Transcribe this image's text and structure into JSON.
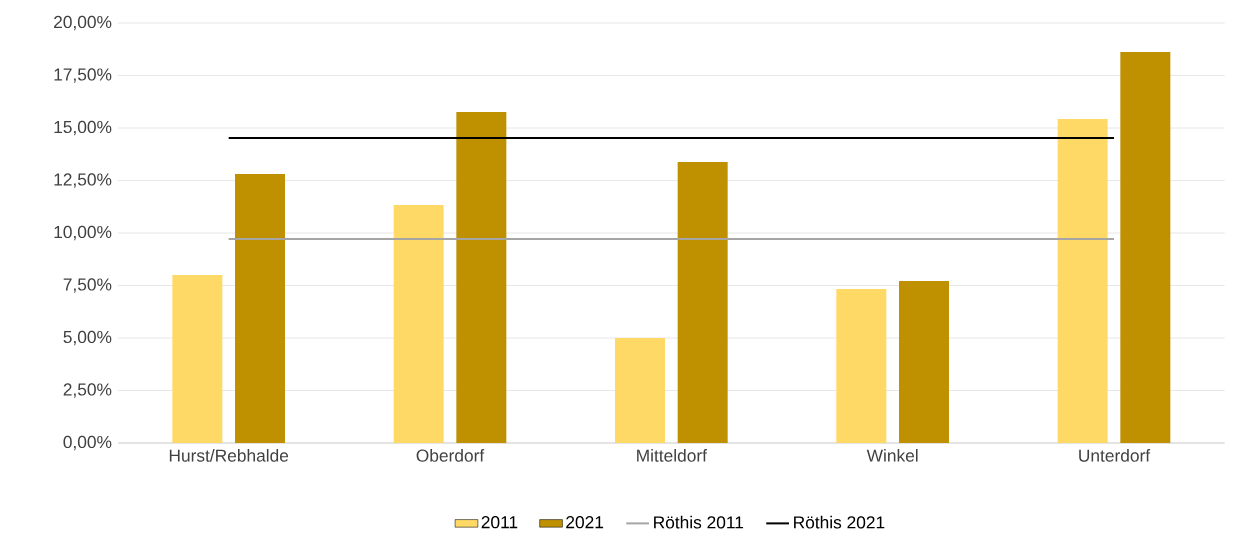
{
  "chart_data": {
    "type": "bar",
    "categories": [
      "Hurst/Rebhalde",
      "Oberdorf",
      "Mitteldorf",
      "Winkel",
      "Unterdorf"
    ],
    "series": [
      {
        "name": "2011",
        "color": "#ffd966",
        "values": [
          8.0,
          11.33,
          5.0,
          7.33,
          15.43
        ]
      },
      {
        "name": "2021",
        "color": "#bf9000",
        "values": [
          12.81,
          15.76,
          13.38,
          7.71,
          18.62
        ]
      },
      {
        "name": "Röthis 2011",
        "type": "line",
        "color": "#a5a5a5",
        "values": [
          9.71,
          9.71,
          9.71,
          9.71,
          9.71
        ]
      },
      {
        "name": "Röthis 2021",
        "type": "line",
        "color": "#000000",
        "values": [
          14.52,
          14.52,
          14.52,
          14.52,
          14.52
        ]
      }
    ],
    "ylim": [
      0,
      20
    ],
    "yticks": [
      {
        "value": 0,
        "label": "0,00%"
      },
      {
        "value": 2.5,
        "label": "2,50%"
      },
      {
        "value": 5,
        "label": "5,00%"
      },
      {
        "value": 7.5,
        "label": "7,50%"
      },
      {
        "value": 10,
        "label": "10,00%"
      },
      {
        "value": 12.5,
        "label": "12,50%"
      },
      {
        "value": 15,
        "label": "15,00%"
      },
      {
        "value": 17.5,
        "label": "17,50%"
      },
      {
        "value": 20,
        "label": "20,00%"
      }
    ],
    "grid": "y",
    "legend": "bottom"
  }
}
